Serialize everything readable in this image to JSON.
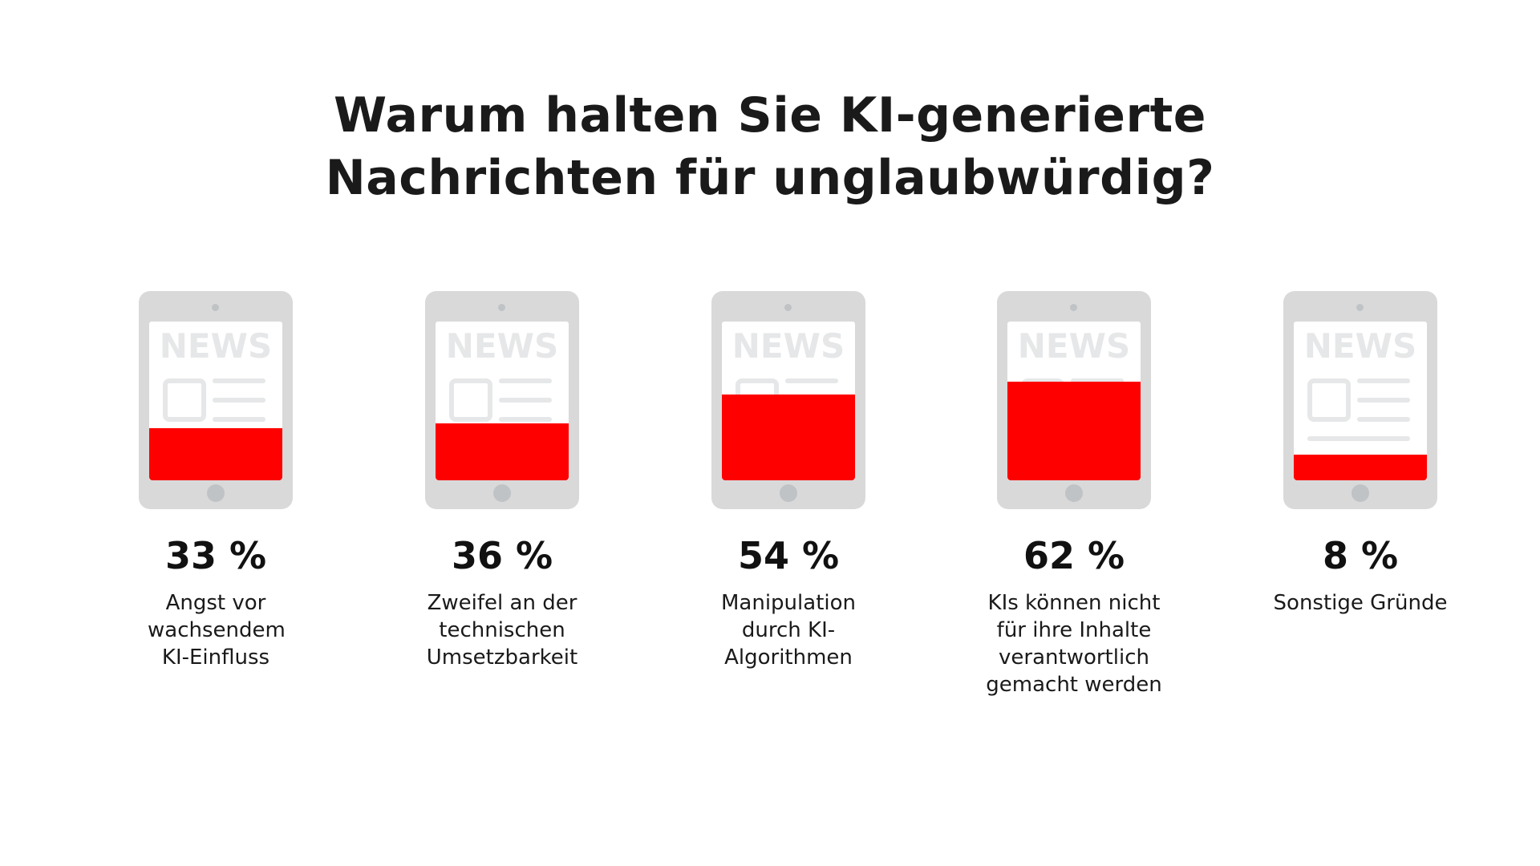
{
  "chart_data": {
    "type": "bar",
    "title": "Warum halten Sie KI-generierte Nachrichten für unglaubwürdig?",
    "title_lines": [
      "Warum halten Sie KI-generierte",
      "Nachrichten für unglaubwürdig?"
    ],
    "unit": "%",
    "categories": [
      "Angst vor wachsendem KI-Einfluss",
      "Zweifel an der technischen Umsetzbarkeit",
      "Manipulation durch KI-Algorithmen",
      "KIs können nicht für ihre Inhalte verantwortlich gemacht werden",
      "Sonstige Gründe"
    ],
    "values": [
      33,
      36,
      54,
      62,
      8
    ],
    "value_labels": [
      "33 %",
      "36 %",
      "54 %",
      "62 %",
      "8 %"
    ],
    "icon_text": "NEWS",
    "colors": {
      "fill": "#ff0000",
      "tablet": "#d9d9d9",
      "screen_icon": "#e6e7e8"
    }
  }
}
